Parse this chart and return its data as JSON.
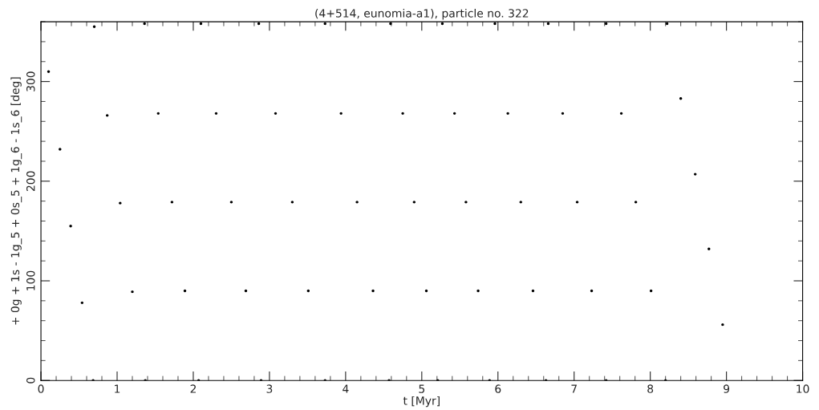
{
  "chart_data": {
    "type": "scatter",
    "title": "(4+514, eunomia-a1), particle no. 322",
    "xlabel": "t [Myr]",
    "ylabel": "+ 0g + 1s - 1g_5 + 0s_5 + 1g_6 - 1s_6 [deg]",
    "xlim": [
      0,
      10
    ],
    "ylim": [
      0,
      360
    ],
    "xticks": [
      0,
      1,
      2,
      3,
      4,
      5,
      6,
      7,
      8,
      9,
      10
    ],
    "yticks": [
      0,
      100,
      200,
      300
    ],
    "marker": "circle",
    "grid": false,
    "series": [
      {
        "color": "#000000",
        "x": [
          0.1,
          0.25,
          0.39,
          0.54,
          0.685,
          0.7,
          0.87,
          1.04,
          1.2,
          1.37,
          1.36,
          1.54,
          1.72,
          1.89,
          2.07,
          2.1,
          2.3,
          2.5,
          2.69,
          2.89,
          2.86,
          3.08,
          3.3,
          3.51,
          3.73,
          3.73,
          3.94,
          4.15,
          4.36,
          4.57,
          4.59,
          4.75,
          4.9,
          5.06,
          5.21,
          5.27,
          5.43,
          5.58,
          5.74,
          5.89,
          5.96,
          6.13,
          6.3,
          6.46,
          6.63,
          6.66,
          6.85,
          7.04,
          7.23,
          7.42,
          7.42,
          7.62,
          7.81,
          8.01,
          8.2,
          8.22,
          8.4,
          8.59,
          8.77,
          8.95
        ],
        "values": [
          310,
          232,
          155,
          78,
          0,
          355,
          266,
          178,
          89,
          0,
          358,
          268,
          179,
          90,
          0,
          358,
          268,
          179,
          90,
          0,
          358,
          268,
          179,
          90,
          0,
          358,
          268,
          179,
          90,
          0,
          358,
          268,
          179,
          90,
          0,
          358,
          268,
          179,
          90,
          0,
          358,
          268,
          179,
          90,
          0,
          358,
          268,
          179,
          90,
          0,
          358,
          268,
          179,
          90,
          0,
          358,
          283,
          207,
          132,
          56
        ]
      }
    ]
  }
}
